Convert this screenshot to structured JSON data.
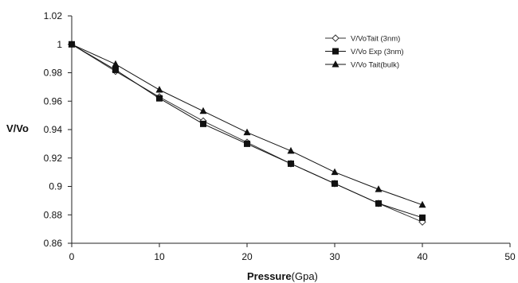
{
  "chart_data": {
    "type": "line",
    "title": "",
    "xlabel": {
      "main": "Pressure",
      "unit": "(Gpa)"
    },
    "ylabel": "V/Vo",
    "xlim": [
      0,
      50
    ],
    "ylim": [
      0.86,
      1.02
    ],
    "xticks": [
      0,
      10,
      20,
      30,
      40,
      50
    ],
    "yticks": [
      0.86,
      0.88,
      0.9,
      0.92,
      0.94,
      0.96,
      0.98,
      1,
      1.02
    ],
    "ytick_labels": [
      "0.86",
      "0.88",
      "0.9",
      "0.92",
      "0.94",
      "0.96",
      "0.98",
      "1",
      "1.02"
    ],
    "grid": false,
    "legend_position": "top-right",
    "x": [
      0,
      5,
      10,
      15,
      20,
      25,
      30,
      35,
      40
    ],
    "series": [
      {
        "name": "V/VoTait (3nm)",
        "marker": "diamond-open",
        "color": "#333333",
        "values": [
          1.0,
          0.981,
          0.963,
          0.946,
          0.931,
          0.916,
          0.902,
          0.888,
          0.875
        ]
      },
      {
        "name": "V/Vo Exp (3nm)",
        "marker": "square",
        "color": "#111111",
        "values": [
          1.0,
          0.982,
          0.962,
          0.944,
          0.93,
          0.916,
          0.902,
          0.888,
          0.878
        ]
      },
      {
        "name": "V/Vo Tait(bulk)",
        "marker": "triangle",
        "color": "#111111",
        "values": [
          1.0,
          0.986,
          0.968,
          0.953,
          0.938,
          0.925,
          0.91,
          0.898,
          0.887
        ]
      }
    ]
  }
}
